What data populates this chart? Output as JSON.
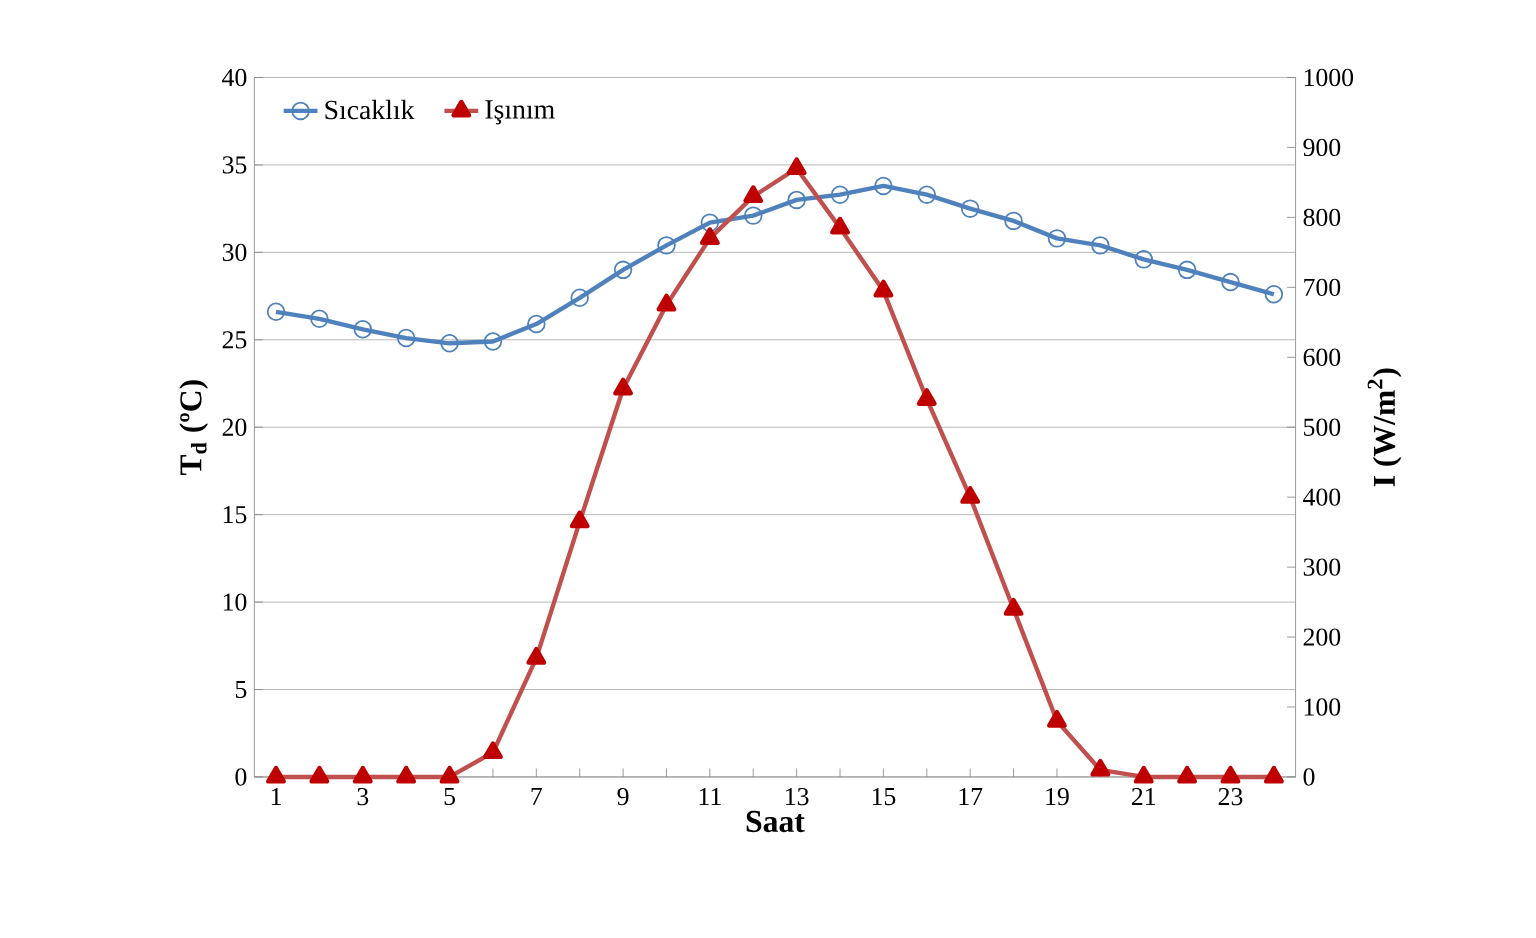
{
  "chart_data": {
    "type": "line",
    "xlabel": "Saat",
    "ylabel": "T$_{d}$ (ºC)",
    "y2label": "I (W/m$^{2}$)",
    "categories": [
      "1",
      null,
      "3",
      null,
      "5",
      null,
      "7",
      null,
      "9",
      null,
      "11",
      null,
      "13",
      null,
      "15",
      null,
      "17",
      null,
      "19",
      null,
      "21",
      null,
      "23",
      null
    ],
    "series": [
      {
        "name": "Sıcaklık",
        "color": "#4f81bd",
        "marker": "circle",
        "values": [
          26.6,
          26.2,
          25.6,
          25.1,
          24.8,
          24.9,
          25.9,
          27.4,
          29.0,
          30.4,
          31.7,
          32.1,
          33.0,
          33.3,
          33.8,
          33.3,
          32.5,
          31.8,
          30.8,
          30.4,
          29.6,
          29.0,
          28.3,
          27.6
        ]
      },
      {
        "name": "Işınım",
        "color": "#c0504d",
        "marker": "triangle",
        "axis": "y2",
        "values": [
          0,
          0,
          0,
          0,
          0,
          35,
          170,
          365,
          555,
          675,
          770,
          830,
          870,
          785,
          695,
          540,
          400,
          240,
          80,
          10,
          0,
          0,
          0,
          0
        ]
      }
    ],
    "ylim": [
      0,
      40
    ],
    "yticks": [
      0,
      5,
      10,
      15,
      20,
      25,
      30,
      35,
      40
    ],
    "y2lim": [
      0,
      1000
    ],
    "y2ticks": [
      0,
      100,
      200,
      300,
      400,
      500,
      600,
      700,
      800,
      900,
      1000
    ],
    "grid": "y",
    "legend": "top left"
  }
}
